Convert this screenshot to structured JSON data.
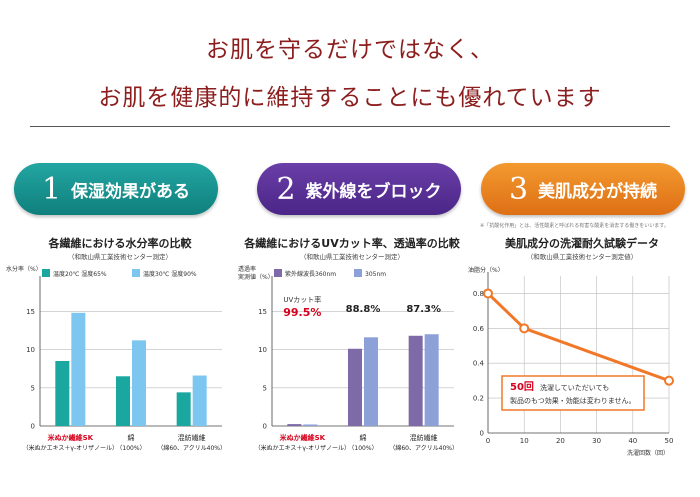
{
  "header": {
    "line1": "お肌を守るだけではなく、",
    "line2": "お肌を健康的に維持することにも優れています"
  },
  "badges": [
    {
      "number": "1",
      "label": "保湿効果がある",
      "color": "#1a9794"
    },
    {
      "number": "2",
      "label": "紫外線をブロック",
      "color": "#5a3298"
    },
    {
      "number": "3",
      "label": "美肌成分が持続",
      "color": "#ec8422"
    }
  ],
  "colors": {
    "title_red": "#8c1e1e",
    "highlight_red": "#d6001c",
    "teal": "#1aa79f",
    "light_blue": "#7cc6f0",
    "purple": "#7f6aa8",
    "blue_purple": "#8ea0d8",
    "orange": "#f07828"
  },
  "note3": "※「抗酸化作用」とは、活性酸素と呼ばれる有害な酸素を消去する働きをいいます。",
  "chart_data": [
    {
      "type": "bar",
      "title": "各繊維における水分率の比較",
      "subtitle": "（和歌山県工業技術センター測定）",
      "ylabel": "水分率（%）",
      "ylim": [
        0,
        17
      ],
      "yticks": [
        "0",
        "5",
        "10",
        "15"
      ],
      "categories": [
        {
          "name": "米ぬか繊維SK",
          "sub": "（米ぬかエキス＋γ-オリザノール）"
        },
        {
          "name": "綿",
          "sub": "（100%）"
        },
        {
          "name": "混紡繊維",
          "sub": "（綿60、アクリル40%）"
        }
      ],
      "series": [
        {
          "name": "温度20℃ 湿度65%",
          "color": "#1aa79f",
          "values": [
            8.5,
            6.5,
            4.4
          ]
        },
        {
          "name": "温度30℃ 湿度90%",
          "color": "#7cc6f0",
          "values": [
            14.8,
            11.2,
            6.6
          ]
        }
      ]
    },
    {
      "type": "bar",
      "title": "各繊維におけるUVカット率、透過率の比較",
      "subtitle": "（和歌山県工業技術センター測定）",
      "ylabel": "透過率 実測値（%）",
      "ylim": [
        0,
        17
      ],
      "yticks": [
        "0",
        "5",
        "10",
        "15"
      ],
      "annotation": "UVカット率",
      "categories": [
        {
          "name": "米ぬか繊維SK",
          "sub": "（米ぬかエキス＋γ-オリザノール）"
        },
        {
          "name": "綿",
          "sub": "（100%）"
        },
        {
          "name": "混紡繊維",
          "sub": "（綿60、アクリル40%）"
        }
      ],
      "data_labels": [
        "99.5%",
        "88.8%",
        "87.3%"
      ],
      "series": [
        {
          "name": "紫外線波長360nm",
          "color": "#7f6aa8",
          "values": [
            0.25,
            10.1,
            11.8
          ]
        },
        {
          "name": "305nm",
          "color": "#8ea0d8",
          "values": [
            0.2,
            11.6,
            12.0
          ]
        }
      ]
    },
    {
      "type": "line",
      "title": "美肌成分の洗濯耐久試験データ",
      "subtitle": "（和歌山県工業技術センター測定値）",
      "ylabel": "油脂分（%）",
      "xlabel": "洗濯回数（回）",
      "xlim": [
        0,
        50
      ],
      "ylim": [
        0,
        0.9
      ],
      "xticks": [
        "0",
        "10",
        "20",
        "30",
        "40",
        "50"
      ],
      "yticks": [
        "0",
        "0.2",
        "0.4",
        "0.6",
        "0.8"
      ],
      "series": [
        {
          "name": "油脂分",
          "color": "#f07828",
          "x": [
            0,
            10,
            50
          ],
          "y": [
            0.8,
            0.6,
            0.3
          ]
        }
      ],
      "callout": {
        "highlight": "50回",
        "text1": "洗濯していただいても",
        "text2": "製品のもつ効果・効能は変わりません。"
      }
    }
  ]
}
